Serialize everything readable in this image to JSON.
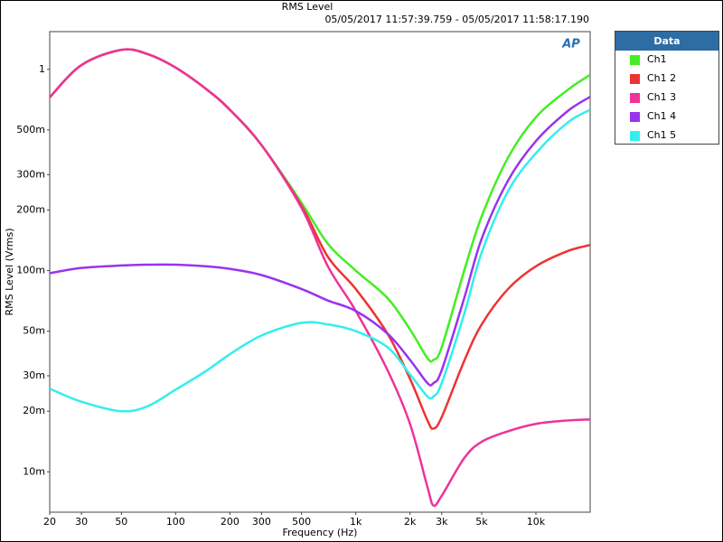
{
  "chart_data": {
    "type": "line",
    "title": "RMS Level",
    "subtitle": "05/05/2017 11:57:39.759 - 05/05/2017 11:58:17.190",
    "logo": "AP",
    "x_label": "Frequency (Hz)",
    "y_label": "RMS Level (Vrms)",
    "legend_title": "Data",
    "legend_position": "right",
    "x_log": true,
    "y_log": true,
    "grid": false,
    "xlim": [
      20,
      20000
    ],
    "ylim": [
      0.0063,
      1.54
    ],
    "xticks": [
      20,
      30,
      50,
      100,
      200,
      300,
      500,
      {
        "value": 1000,
        "label": "1k"
      },
      {
        "value": 2000,
        "label": "2k"
      },
      {
        "value": 3000,
        "label": "3k"
      },
      {
        "value": 5000,
        "label": "5k"
      },
      {
        "value": 10000,
        "label": "10k"
      }
    ],
    "yticks": [
      {
        "value": 1,
        "label": "1"
      },
      {
        "value": 0.5,
        "label": "500m"
      },
      {
        "value": 0.3,
        "label": "300m"
      },
      {
        "value": 0.2,
        "label": "200m"
      },
      {
        "value": 0.1,
        "label": "100m"
      },
      {
        "value": 0.05,
        "label": "50m"
      },
      {
        "value": 0.03,
        "label": "30m"
      },
      {
        "value": 0.02,
        "label": "20m"
      },
      {
        "value": 0.01,
        "label": "10m"
      }
    ],
    "x": [
      20,
      30,
      50,
      70,
      100,
      150,
      200,
      300,
      500,
      700,
      1000,
      1500,
      2000,
      2500,
      2700,
      3000,
      4000,
      5000,
      7000,
      10000,
      15000,
      20000
    ],
    "series": [
      {
        "name": "Ch1",
        "color": "#44ee22",
        "values": [
          0.726,
          1.05,
          1.25,
          1.19,
          1.02,
          0.79,
          0.63,
          0.42,
          0.217,
          0.136,
          0.1,
          0.073,
          0.051,
          0.0367,
          0.036,
          0.0416,
          0.1,
          0.186,
          0.364,
          0.578,
          0.79,
          0.94
        ]
      },
      {
        "name": "Ch1 2",
        "color": "#ee3333",
        "values": [
          0.726,
          1.05,
          1.25,
          1.19,
          1.02,
          0.79,
          0.63,
          0.42,
          0.21,
          0.117,
          0.081,
          0.0486,
          0.029,
          0.018,
          0.0164,
          0.0187,
          0.0356,
          0.054,
          0.081,
          0.105,
          0.125,
          0.134
        ]
      },
      {
        "name": "Ch1 3",
        "color": "#ee3399",
        "values": [
          0.726,
          1.05,
          1.25,
          1.19,
          1.02,
          0.79,
          0.63,
          0.42,
          0.205,
          0.105,
          0.063,
          0.032,
          0.0173,
          0.0084,
          0.0068,
          0.0076,
          0.0117,
          0.0141,
          0.0159,
          0.0173,
          0.018,
          0.0182
        ]
      },
      {
        "name": "Ch1 4",
        "color": "#9933ee",
        "values": [
          0.097,
          0.103,
          0.106,
          0.107,
          0.107,
          0.105,
          0.102,
          0.095,
          0.081,
          0.071,
          0.063,
          0.0486,
          0.036,
          0.0276,
          0.0276,
          0.032,
          0.073,
          0.144,
          0.28,
          0.44,
          0.62,
          0.73
        ]
      },
      {
        "name": "Ch1 5",
        "color": "#33eeee",
        "values": [
          0.0259,
          0.0223,
          0.02,
          0.0212,
          0.0256,
          0.032,
          0.0384,
          0.0476,
          0.055,
          0.054,
          0.05,
          0.0416,
          0.0305,
          0.0237,
          0.0237,
          0.0276,
          0.061,
          0.123,
          0.248,
          0.383,
          0.544,
          0.63
        ]
      }
    ]
  }
}
